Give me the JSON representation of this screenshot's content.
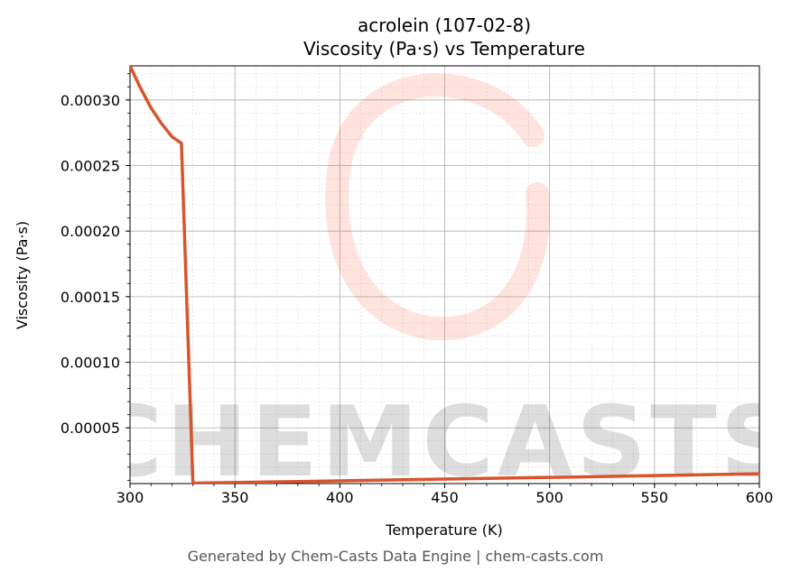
{
  "chart_data": {
    "type": "line",
    "title": "acrolein (107-02-8)",
    "subtitle": "Viscosity (Pa·s) vs Temperature",
    "xlabel": "Temperature (K)",
    "ylabel": "Viscosity (Pa·s)",
    "xlim": [
      300,
      600
    ],
    "ylim": [
      7.5e-06,
      0.000326
    ],
    "x_ticks": [
      "300",
      "350",
      "400",
      "450",
      "500",
      "550",
      "600"
    ],
    "y_ticks": [
      "0.00005",
      "0.00010",
      "0.00015",
      "0.00020",
      "0.00025",
      "0.00030"
    ],
    "grid": true,
    "line_color": "#d9532b",
    "series": [
      {
        "x": [
          300,
          305,
          310,
          315,
          320,
          324.5,
          330,
          331,
          350,
          400,
          450,
          500,
          550,
          600
        ],
        "y": [
          0.000326,
          0.000309,
          0.000294,
          0.000282,
          0.000272,
          0.000267,
          6.8e-06,
          7.8e-06,
          8.3e-06,
          9.6e-06,
          1.09e-05,
          1.22e-05,
          1.36e-05,
          1.5e-05
        ]
      }
    ]
  },
  "watermark": {
    "text": "CHEMCASTS",
    "color": "#ff2a00"
  },
  "footer": "Generated by Chem-Casts Data Engine | chem-casts.com"
}
